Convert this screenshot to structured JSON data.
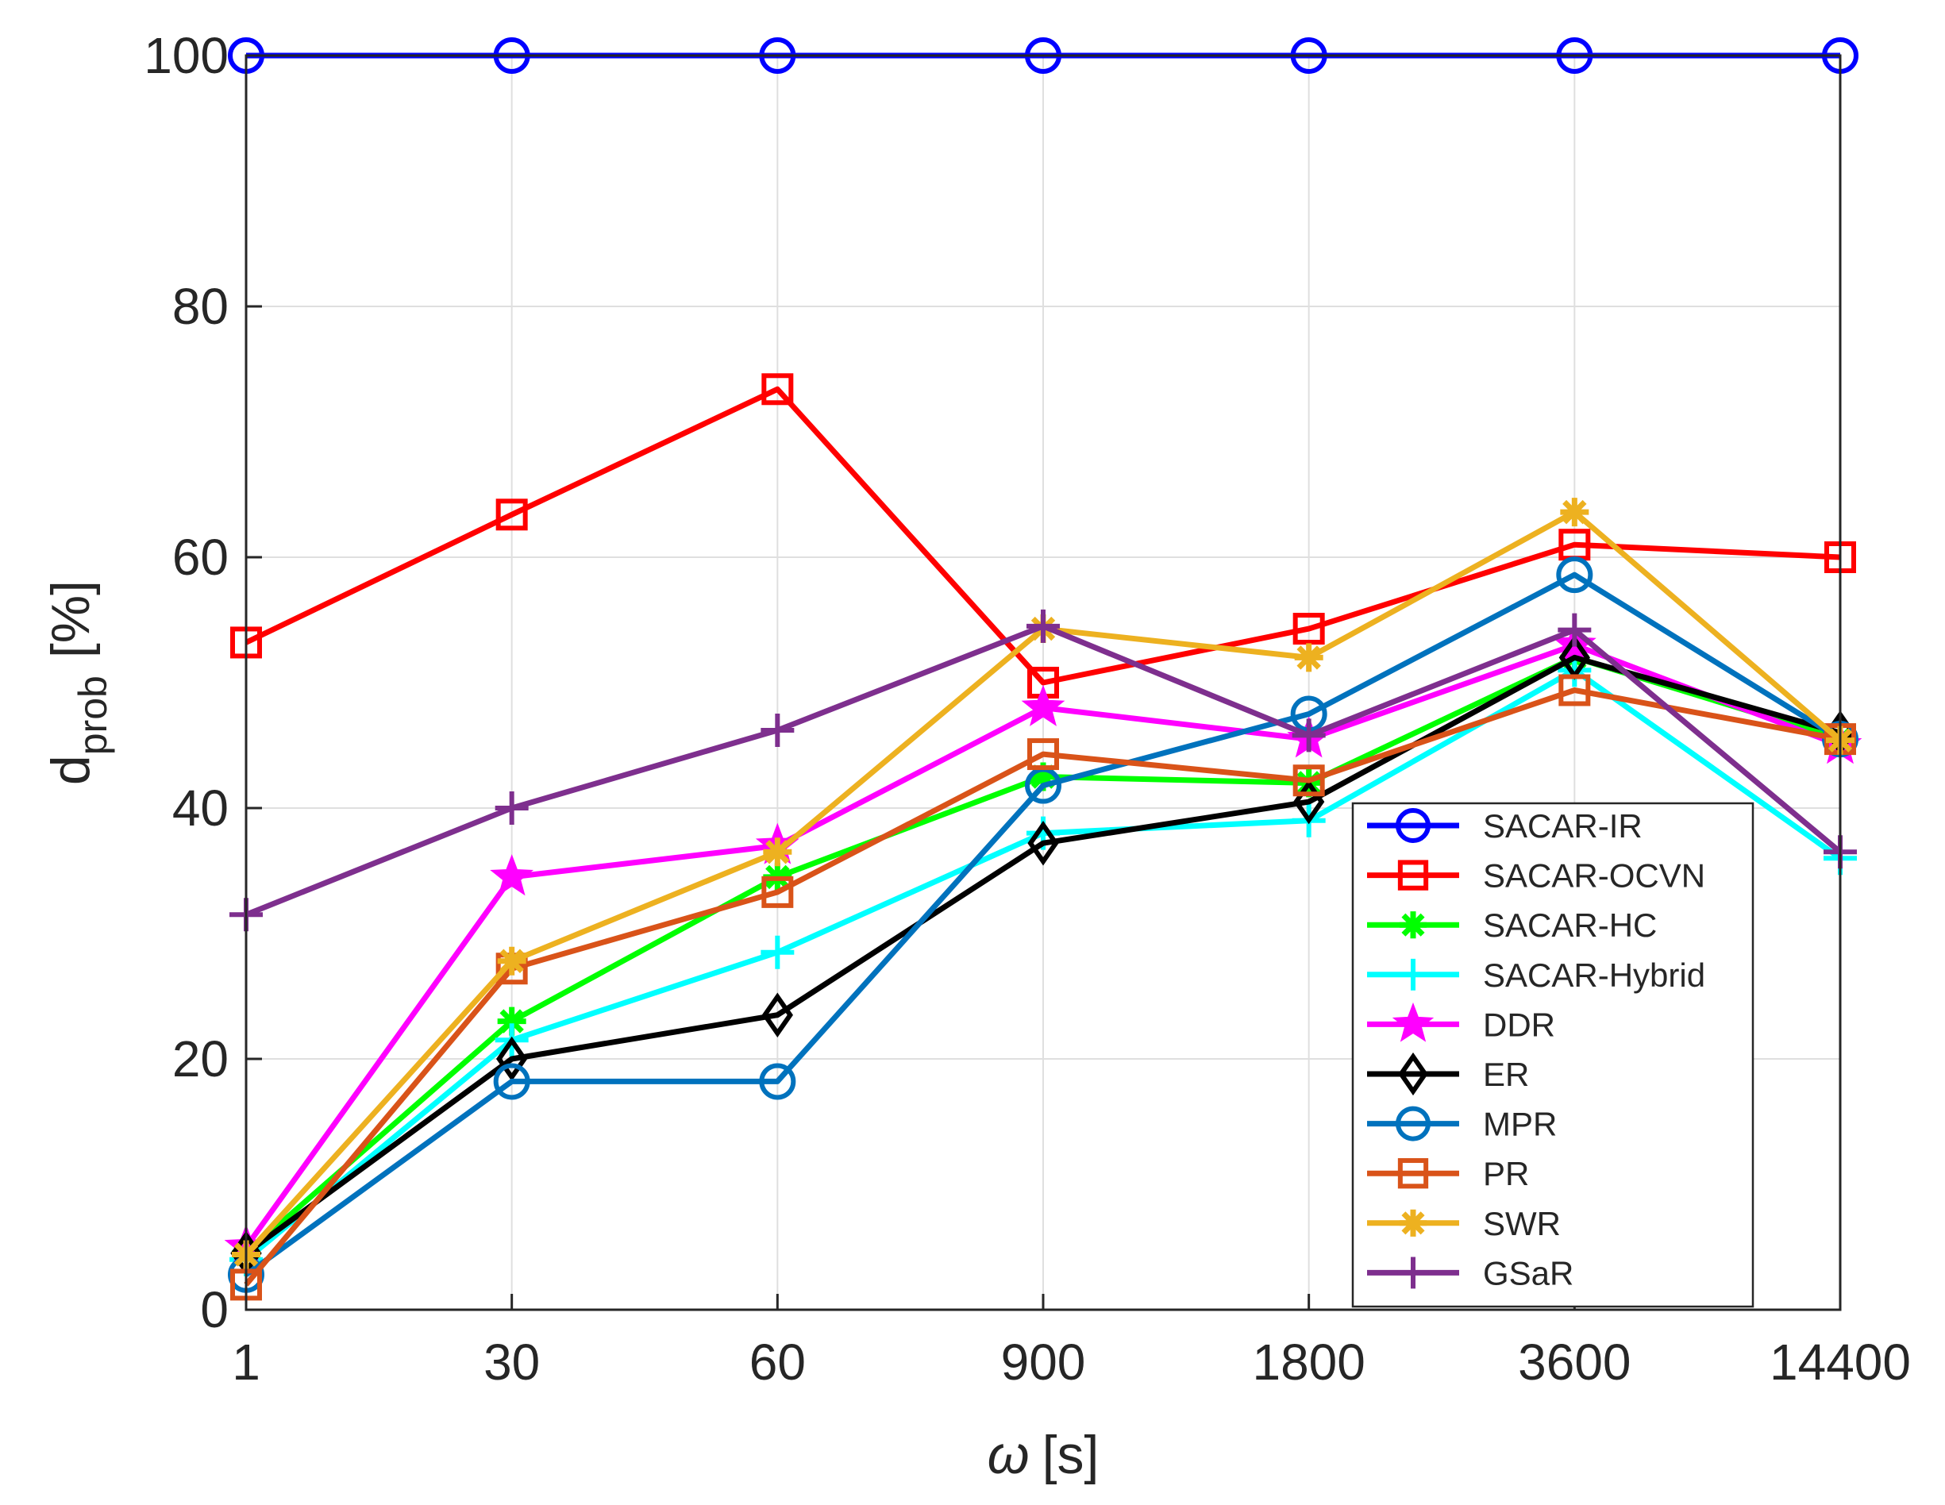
{
  "chart_data": {
    "type": "line",
    "xlabel": "[s]",
    "xlabel_symbol": "ω",
    "ylabel": "[%]",
    "ylabel_main": "d",
    "ylabel_sub": "prob",
    "categories": [
      "1",
      "30",
      "60",
      "900",
      "1800",
      "3600",
      "14400"
    ],
    "ylim": [
      0,
      100
    ],
    "yticks": [
      "0",
      "20",
      "40",
      "60",
      "80",
      "100"
    ],
    "grid": true,
    "legend_position": "bottom-right",
    "series": [
      {
        "name": "SACAR-IR",
        "color": "#0000ff",
        "marker": "circle",
        "values": [
          100,
          100,
          100,
          100,
          100,
          100,
          100
        ]
      },
      {
        "name": "SACAR-OCVN",
        "color": "#ff0000",
        "marker": "square",
        "values": [
          53.2,
          63.4,
          73.4,
          50.0,
          54.3,
          61.0,
          60.0
        ]
      },
      {
        "name": "SACAR-HC",
        "color": "#00ff00",
        "marker": "asterisk",
        "values": [
          4.5,
          23.0,
          34.5,
          42.5,
          42.0,
          52.0,
          45.5
        ]
      },
      {
        "name": "SACAR-Hybrid",
        "color": "#00ffff",
        "marker": "plus",
        "values": [
          4.0,
          21.5,
          28.5,
          38.0,
          39.0,
          51.0,
          36.0
        ]
      },
      {
        "name": "DDR",
        "color": "#ff00ff",
        "marker": "star",
        "values": [
          5.0,
          34.5,
          37.0,
          48.0,
          45.5,
          53.0,
          45.0
        ]
      },
      {
        "name": "ER",
        "color": "#000000",
        "marker": "diamond",
        "values": [
          4.5,
          20.0,
          23.5,
          37.2,
          40.5,
          52.0,
          46.0
        ]
      },
      {
        "name": "MPR",
        "color": "#0072bd",
        "marker": "circle",
        "values": [
          2.8,
          18.2,
          18.2,
          41.8,
          47.5,
          58.6,
          45.5
        ]
      },
      {
        "name": "PR",
        "color": "#d95319",
        "marker": "square",
        "values": [
          2.0,
          27.2,
          33.3,
          44.3,
          42.2,
          49.4,
          45.5
        ]
      },
      {
        "name": "SWR",
        "color": "#edb120",
        "marker": "asterisk",
        "values": [
          4.4,
          27.8,
          36.5,
          54.3,
          52.0,
          63.6,
          45.4
        ]
      },
      {
        "name": "GSaR",
        "color": "#7e2f8e",
        "marker": "plus",
        "values": [
          31.5,
          40.0,
          46.2,
          54.5,
          45.8,
          54.2,
          36.5
        ]
      }
    ]
  }
}
